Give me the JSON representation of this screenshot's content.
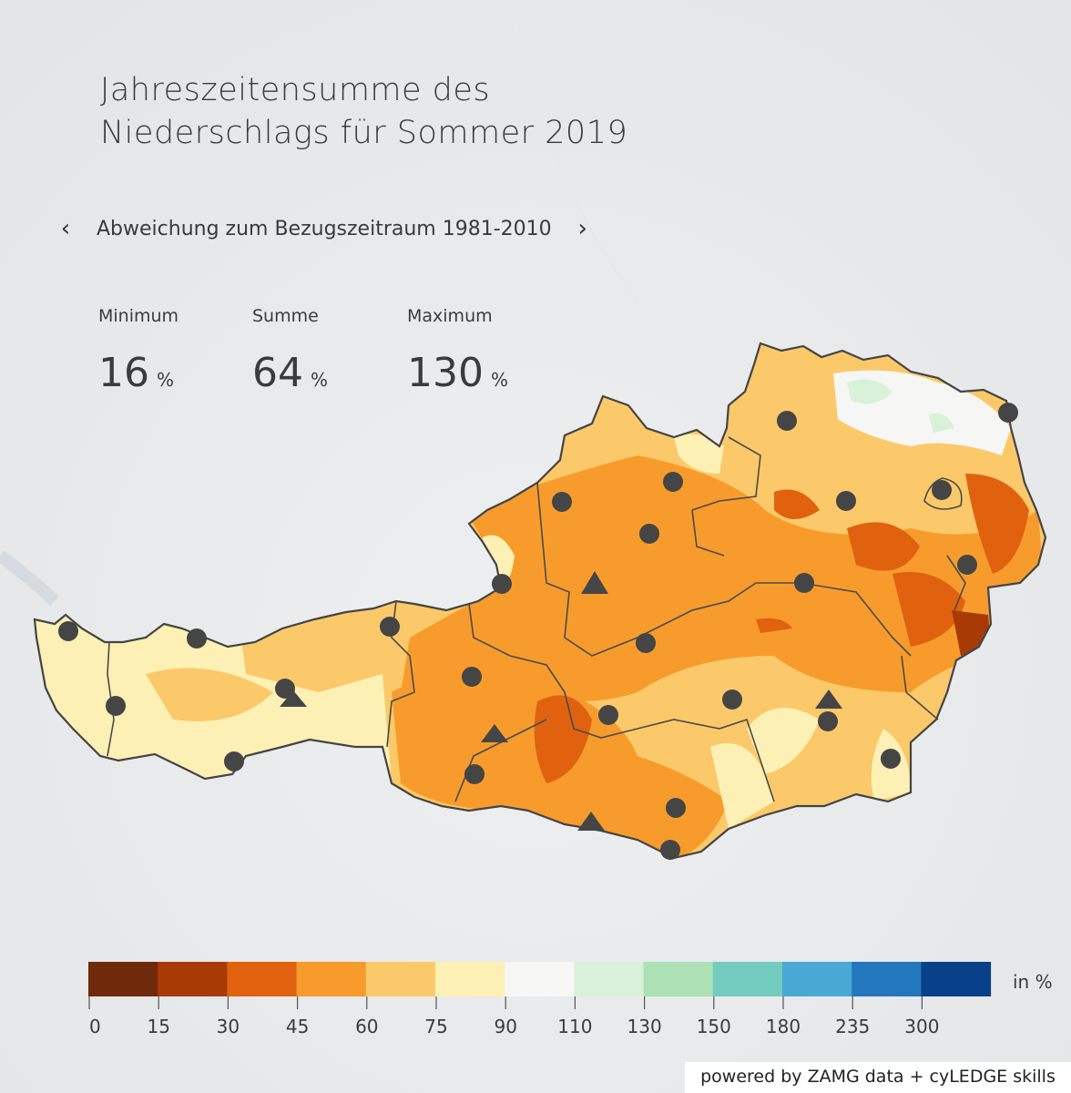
{
  "title_line1": "Jahreszeitensumme des",
  "title_line2": "Niederschlags für Sommer 2019",
  "nav": {
    "prev_icon": "chevron-left-icon",
    "next_icon": "chevron-right-icon",
    "label": "Abweichung zum Bezugszeitraum 1981-2010"
  },
  "stats": [
    {
      "label": "Minimum",
      "value": "16",
      "unit": "%"
    },
    {
      "label": "Summe",
      "value": "64",
      "unit": "%"
    },
    {
      "label": "Maximum",
      "value": "130",
      "unit": "%"
    }
  ],
  "legend": {
    "unit": "in %",
    "ticks": [
      "0",
      "15",
      "30",
      "45",
      "60",
      "75",
      "90",
      "110",
      "130",
      "150",
      "180",
      "235",
      "300"
    ],
    "colors": [
      "#6e2a0a",
      "#a83a06",
      "#e0620f",
      "#f79c2c",
      "#fbc96a",
      "#fdf0b4",
      "#f6f6f5",
      "#d9f1d9",
      "#ace0b5",
      "#74cbc0",
      "#49a9d4",
      "#2377bd",
      "#08408a"
    ]
  },
  "credit": "powered by ZAMG data + cyLEDGE skills"
}
